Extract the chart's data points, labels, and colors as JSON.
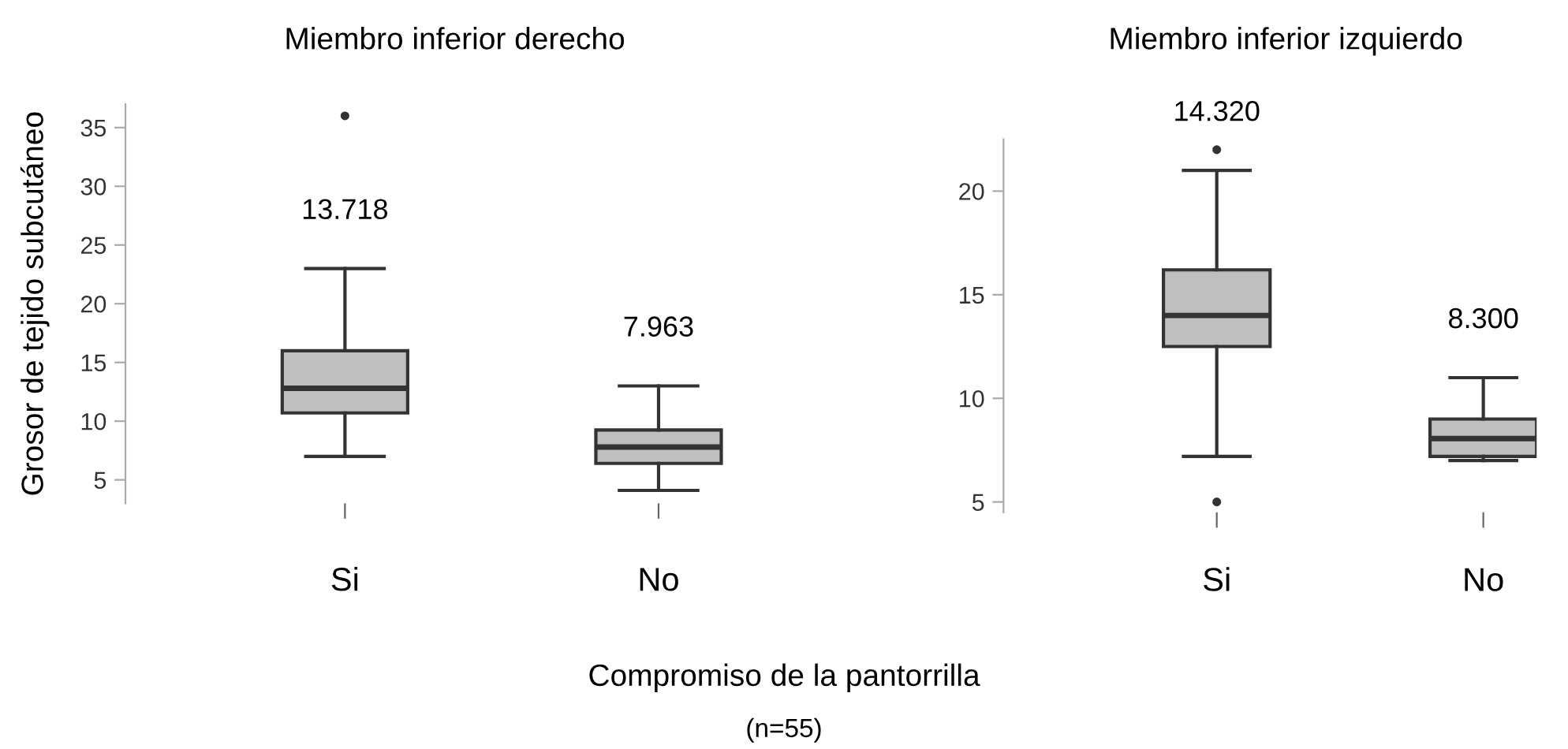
{
  "chart_data": [
    {
      "type": "box",
      "title": "Miembro inferior derecho",
      "ylabel": "Grosor de tejido subcutáneo",
      "xlabel": "Compromiso de la pantorrilla",
      "categories": [
        "Si",
        "No"
      ],
      "boxes": [
        {
          "low": 7,
          "q1": 10.7,
          "median": 12.8,
          "q3": 16,
          "high": 23,
          "outliers": [
            36
          ]
        },
        {
          "low": 4.1,
          "q1": 6.4,
          "median": 7.8,
          "q3": 9.25,
          "high": 13
        }
      ],
      "color": "#bfbfbf",
      "ylim": [
        3,
        37
      ],
      "yticks": [
        5,
        10,
        15,
        20,
        25,
        30,
        35
      ],
      "grid": false,
      "legend": false,
      "annotations": [
        "13.718",
        "7.963",
        "(n=55)"
      ]
    },
    {
      "type": "box",
      "title": "Miembro inferior izquierdo",
      "categories": [
        "Si",
        "No"
      ],
      "boxes": [
        {
          "low": 7.2,
          "q1": 12.5,
          "median": 14,
          "q3": 16.2,
          "high": 21,
          "outliers": [
            22,
            5
          ]
        },
        {
          "low": 7,
          "q1": 7.2,
          "median": 8.06,
          "q3": 9,
          "high": 11
        }
      ],
      "color": "#bfbfbf",
      "ylim": [
        4.5,
        22.5
      ],
      "yticks": [
        5,
        10,
        15,
        20
      ],
      "grid": false,
      "legend": false,
      "annotations": [
        "14.320",
        "8.300"
      ]
    }
  ]
}
